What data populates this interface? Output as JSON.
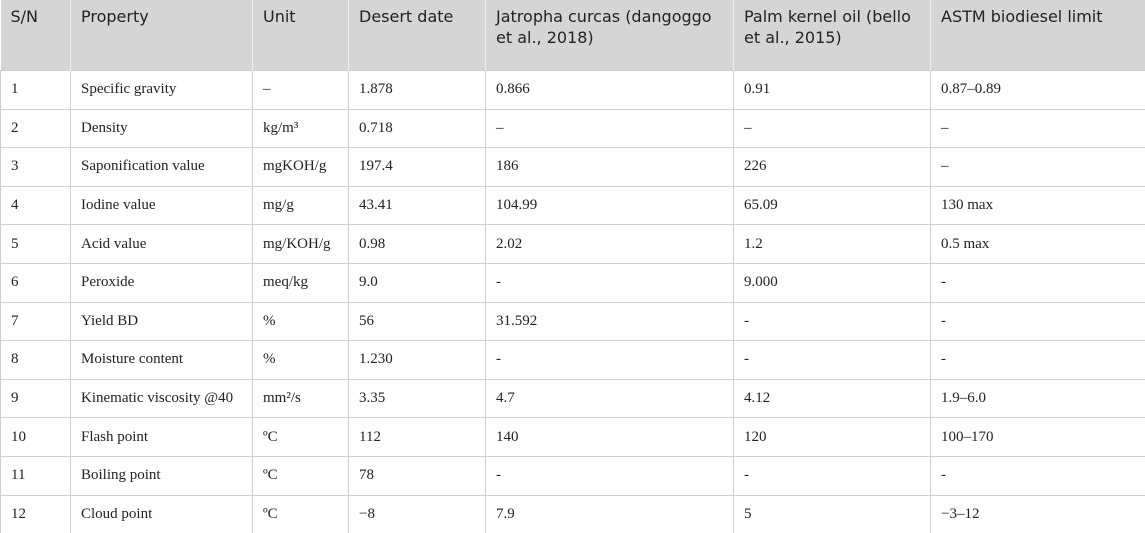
{
  "table": {
    "header": [
      "S/N",
      "Property",
      "Unit",
      "Desert date",
      "Jatropha curcas (dangoggo et al., 2018)",
      "Palm kernel oil (bello et al., 2015)",
      "ASTM biodiesel limit"
    ],
    "rows": [
      [
        "1",
        "Specific gravity",
        "–",
        "1.878",
        "0.866",
        "0.91",
        "0.87–0.89"
      ],
      [
        "2",
        "Density",
        "kg/m³",
        "0.718",
        "–",
        "–",
        "–"
      ],
      [
        "3",
        "Saponification value",
        "mgKOH/g",
        "197.4",
        "186",
        "226",
        "–"
      ],
      [
        "4",
        "Iodine value",
        "mg/g",
        "43.41",
        "104.99",
        "65.09",
        "130 max"
      ],
      [
        "5",
        "Acid value",
        "mg/KOH/g",
        "0.98",
        "2.02",
        "1.2",
        "0.5 max"
      ],
      [
        "6",
        "Peroxide",
        "meq/kg",
        "9.0",
        "-",
        "9.000",
        "-"
      ],
      [
        "7",
        "Yield BD",
        "%",
        "56",
        "31.592",
        "-",
        "-"
      ],
      [
        "8",
        "Moisture content",
        "%",
        "1.230",
        "-",
        "-",
        "-"
      ],
      [
        "9",
        "Kinematic viscosity @40",
        "mm²/s",
        "3.35",
        "4.7",
        "4.12",
        "1.9–6.0"
      ],
      [
        "10",
        "Flash point",
        "ºC",
        "112",
        "140",
        "120",
        "100–170"
      ],
      [
        "11",
        "Boiling point",
        "ºC",
        "78",
        "-",
        "-",
        "-"
      ],
      [
        "12",
        "Cloud point",
        "ºC",
        "−8",
        "7.9",
        "5",
        "−3–12"
      ]
    ]
  }
}
